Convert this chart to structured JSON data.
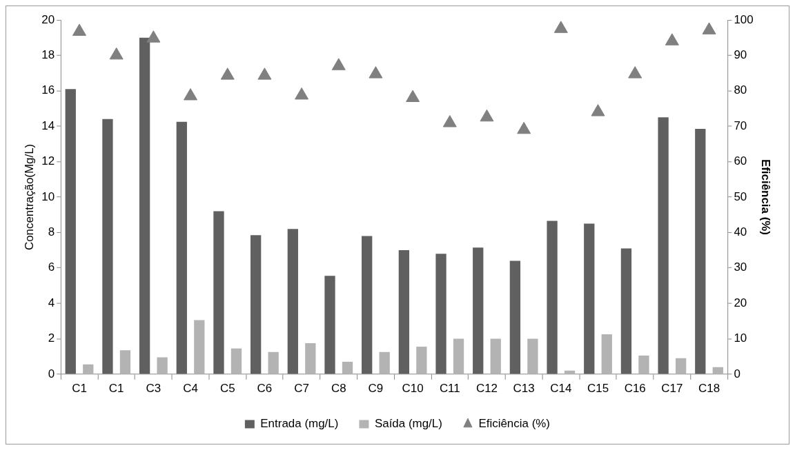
{
  "chart_data": {
    "type": "bar",
    "ylabel": "Concentração(Mg/L)",
    "y2label": "Eficiência (%)",
    "categories": [
      "C1",
      "C1",
      "C3",
      "C4",
      "C5",
      "C6",
      "C7",
      "C8",
      "C9",
      "C10",
      "C11",
      "C12",
      "C13",
      "C14",
      "C15",
      "C16",
      "C17",
      "C18"
    ],
    "series": [
      {
        "name": "Entrada (mg/L)",
        "color": "#606060",
        "values": [
          16.1,
          14.4,
          19.0,
          14.25,
          9.2,
          7.85,
          8.2,
          5.55,
          7.8,
          7.0,
          6.8,
          7.15,
          6.4,
          8.65,
          8.5,
          7.1,
          14.5,
          13.85
        ]
      },
      {
        "name": "Saída (mg/L)",
        "color": "#b3b3b3",
        "values": [
          0.55,
          1.35,
          0.95,
          3.05,
          1.45,
          1.25,
          1.75,
          0.7,
          1.25,
          1.55,
          2.0,
          2.0,
          2.0,
          0.2,
          2.25,
          1.05,
          0.9,
          0.4
        ]
      },
      {
        "name": "Eficiência (%)",
        "type": "scatter",
        "axis": "y2",
        "marker": "triangle",
        "color": "#808080",
        "values": [
          96.7,
          90,
          94.8,
          78.5,
          84.3,
          84.3,
          78.7,
          87,
          84.7,
          78,
          70.9,
          72.5,
          69,
          97.5,
          74,
          84.7,
          94,
          97.1
        ]
      }
    ],
    "ylim": [
      0,
      20
    ],
    "yticks": [
      0,
      2,
      4,
      6,
      8,
      10,
      12,
      14,
      16,
      18,
      20
    ],
    "y2lim": [
      0,
      100
    ],
    "y2ticks": [
      0,
      10,
      20,
      30,
      40,
      50,
      60,
      70,
      80,
      90,
      100
    ],
    "grid": false,
    "legend": "bottom"
  }
}
